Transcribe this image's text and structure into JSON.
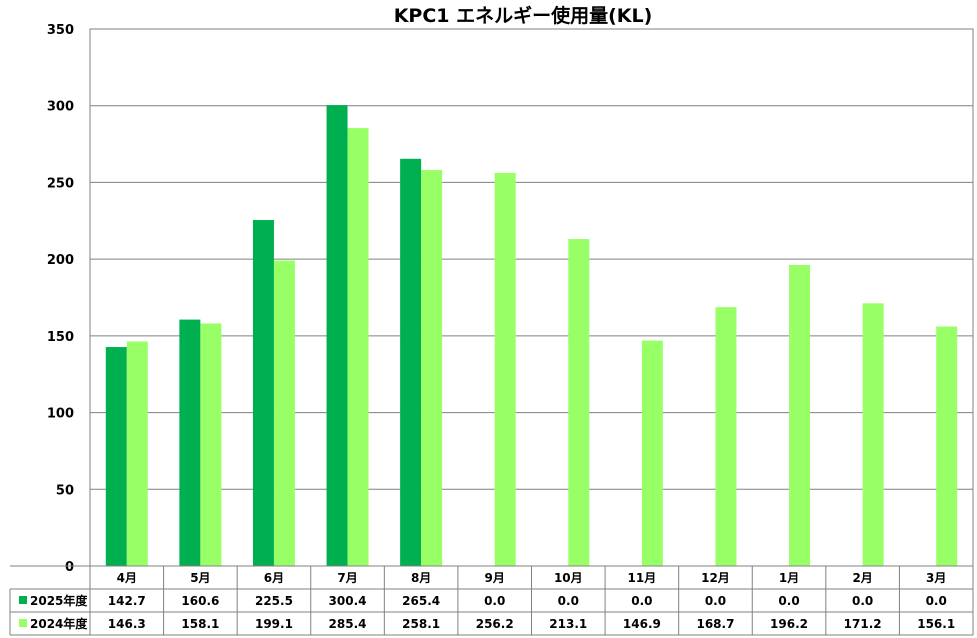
{
  "chart_data": {
    "type": "bar",
    "title": "KPC1 エネルギー使用量(KL)",
    "categories": [
      "4月",
      "5月",
      "6月",
      "7月",
      "8月",
      "9月",
      "10月",
      "11月",
      "12月",
      "1月",
      "2月",
      "3月"
    ],
    "series": [
      {
        "name": "2025年度",
        "color": "#00b050",
        "values": [
          142.7,
          160.6,
          225.5,
          300.4,
          265.4,
          0.0,
          0.0,
          0.0,
          0.0,
          0.0,
          0.0,
          0.0
        ]
      },
      {
        "name": "2024年度",
        "color": "#99ff66",
        "values": [
          146.3,
          158.1,
          199.1,
          285.4,
          258.1,
          256.2,
          213.1,
          146.9,
          168.7,
          196.2,
          171.2,
          156.1
        ]
      }
    ],
    "series_table": [
      [
        "142.7",
        "160.6",
        "225.5",
        "300.4",
        "265.4",
        "0.0",
        "0.0",
        "0.0",
        "0.0",
        "0.0",
        "0.0",
        "0.0"
      ],
      [
        "146.3",
        "158.1",
        "199.1",
        "285.4",
        "258.1",
        "256.2",
        "213.1",
        "146.9",
        "168.7",
        "196.2",
        "171.2",
        "156.1"
      ]
    ],
    "ylim": [
      0,
      350
    ],
    "yticks": [
      "0",
      "50",
      "100",
      "150",
      "200",
      "250",
      "300",
      "350"
    ],
    "grid": true,
    "legend": "data-table-left"
  }
}
